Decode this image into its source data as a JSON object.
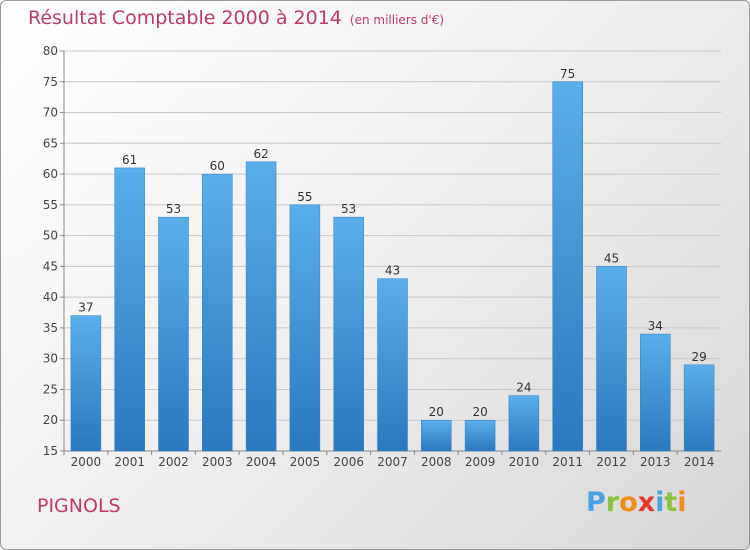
{
  "title": "Résultat Comptable 2000 à 2014",
  "subtitle": "(en milliers d'€)",
  "commune": "PIGNOLS",
  "logo": {
    "letters": [
      "P",
      "r",
      "o",
      "x",
      "i",
      "t",
      "i"
    ],
    "colors": [
      "#4aa3e0",
      "#8ac43f",
      "#f08c1e",
      "#e7362d",
      "#4aa3e0",
      "#8ac43f",
      "#f08c1e"
    ]
  },
  "colors": {
    "bar": "#4a9fe0",
    "bar_dark": "#2b78be",
    "text_accent": "#c0396b"
  },
  "chart_data": {
    "type": "bar",
    "title": "Résultat Comptable 2000 à 2014",
    "subtitle": "(en milliers d'€)",
    "categories": [
      "2000",
      "2001",
      "2002",
      "2003",
      "2004",
      "2005",
      "2006",
      "2007",
      "2008",
      "2009",
      "2010",
      "2011",
      "2012",
      "2013",
      "2014"
    ],
    "values": [
      37,
      61,
      53,
      60,
      62,
      55,
      53,
      43,
      20,
      20,
      24,
      75,
      45,
      34,
      29
    ],
    "ylim": [
      15,
      80
    ],
    "yticks": [
      15,
      20,
      25,
      30,
      35,
      40,
      45,
      50,
      55,
      60,
      65,
      70,
      75,
      80
    ],
    "xlabel": "",
    "ylabel": "",
    "grid": true,
    "data_labels": true
  }
}
